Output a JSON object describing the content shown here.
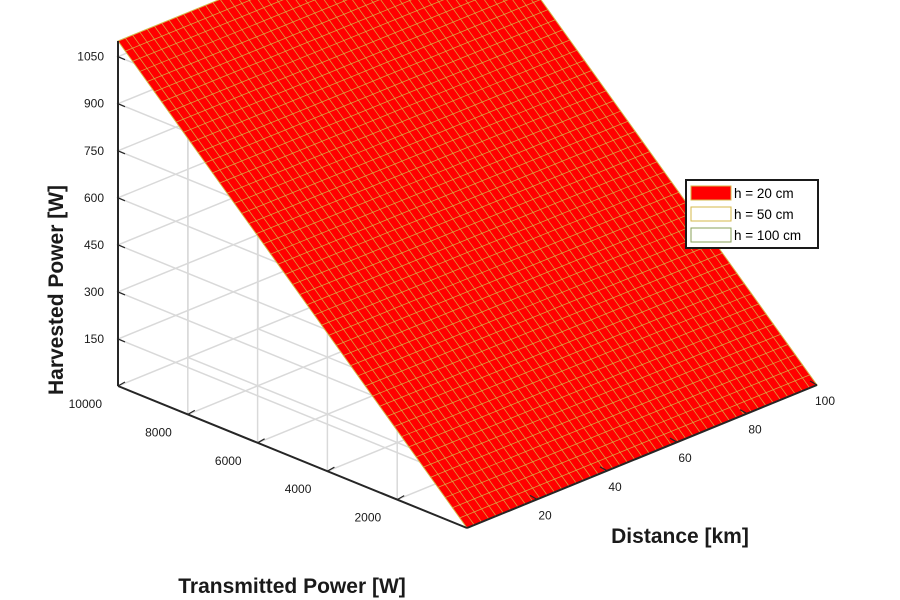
{
  "chart_data": {
    "type": "surface",
    "xlabel": "Distance [km]",
    "ylabel": "Transmitted Power [W]",
    "zlabel": "Harvested Power [W]",
    "x_ticks": [
      "20",
      "40",
      "60",
      "80",
      "100"
    ],
    "y_ticks": [
      "2000",
      "4000",
      "6000",
      "8000",
      "10000"
    ],
    "z_ticks": [
      "150",
      "300",
      "450",
      "600",
      "750",
      "900",
      "1050"
    ],
    "xlim": [
      0,
      100
    ],
    "ylim": [
      0,
      10000
    ],
    "zlim": [
      0,
      1100
    ],
    "grid": true,
    "legend_position": "right",
    "series": [
      {
        "name": "h = 20 cm",
        "color": "#ff0000",
        "edge_color": "#d4b84a"
      },
      {
        "name": "h = 50 cm",
        "color": "#ffffff",
        "edge_color": "#d4b84a"
      },
      {
        "name": "h = 100 cm",
        "color": "#ffffff",
        "edge_color": "#8aa05a"
      }
    ],
    "surface": {
      "description_values": "Harvested power increases linearly with transmitted power and is nearly constant over distance",
      "z_at_y_max": 1100,
      "z_at_y_min": 0
    }
  }
}
